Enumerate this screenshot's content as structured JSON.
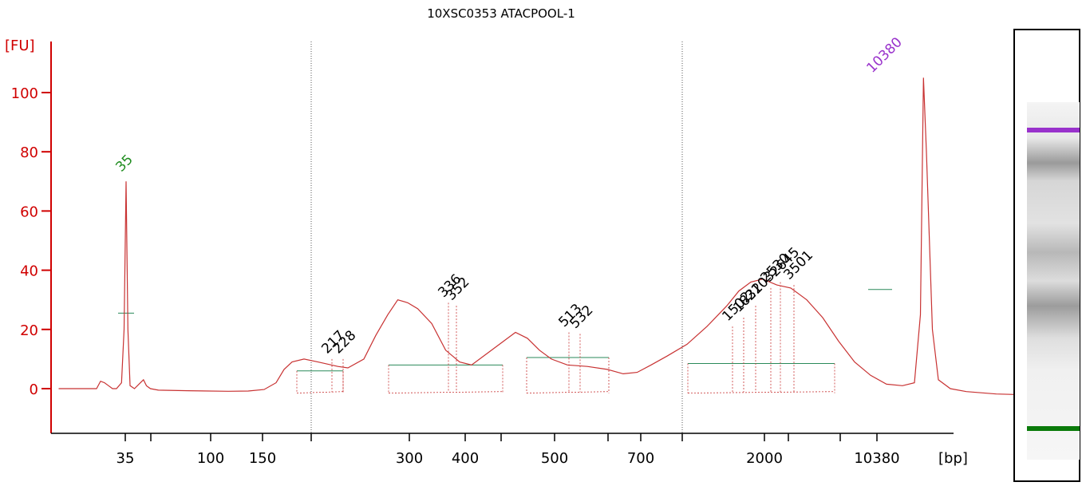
{
  "chart_data": {
    "type": "line",
    "title": "10XSC0353 ATACPOOL-1",
    "y_unit_label": "[FU]",
    "x_unit_label": "[bp]",
    "ylim": [
      -15,
      115
    ],
    "y_ticks": [
      0,
      20,
      40,
      60,
      80,
      100
    ],
    "x_tick_labels": [
      "35",
      "100",
      "150",
      "300",
      "400",
      "500",
      "700",
      "2000",
      "10380"
    ],
    "markers": {
      "lower": {
        "label": "35",
        "color": "#1e8c1e"
      },
      "upper": {
        "label": "10380",
        "color": "#9932cc"
      }
    },
    "peak_labels": [
      "217",
      "228",
      "336",
      "352",
      "513",
      "532",
      "1502",
      "1832",
      "2103",
      "2530",
      "2645",
      "3501"
    ],
    "trace_points": [
      [
        0.5,
        0
      ],
      [
        2.4,
        0
      ],
      [
        2.6,
        2.5
      ],
      [
        2.8,
        2
      ],
      [
        3.0,
        1
      ],
      [
        3.2,
        0
      ],
      [
        3.4,
        0
      ],
      [
        3.65,
        2
      ],
      [
        3.78,
        20
      ],
      [
        3.88,
        70
      ],
      [
        3.97,
        20
      ],
      [
        4.08,
        1
      ],
      [
        4.3,
        0
      ],
      [
        4.6,
        2
      ],
      [
        4.75,
        3
      ],
      [
        4.9,
        1
      ],
      [
        5.1,
        0
      ],
      [
        5.5,
        -0.5
      ],
      [
        7,
        -0.7
      ],
      [
        9,
        -0.9
      ],
      [
        10,
        -0.8
      ],
      [
        10.8,
        -0.3
      ],
      [
        11.4,
        2
      ],
      [
        11.8,
        6.5
      ],
      [
        12.2,
        9
      ],
      [
        12.8,
        10
      ],
      [
        13.5,
        9
      ],
      [
        14.5,
        7.5
      ],
      [
        15.0,
        7
      ],
      [
        15.8,
        10
      ],
      [
        16.4,
        18
      ],
      [
        17.0,
        25
      ],
      [
        17.5,
        30
      ],
      [
        18.0,
        29
      ],
      [
        18.5,
        27
      ],
      [
        19.2,
        22
      ],
      [
        19.9,
        13
      ],
      [
        20.6,
        9
      ],
      [
        21.2,
        8
      ],
      [
        22.0,
        12
      ],
      [
        22.8,
        16
      ],
      [
        23.4,
        19
      ],
      [
        24.0,
        17
      ],
      [
        24.6,
        13
      ],
      [
        25.2,
        10
      ],
      [
        26.0,
        8
      ],
      [
        27.0,
        7.5
      ],
      [
        28.0,
        6.5
      ],
      [
        28.8,
        5
      ],
      [
        29.5,
        5.5
      ],
      [
        30.2,
        8
      ],
      [
        31.0,
        11
      ],
      [
        32.0,
        15
      ],
      [
        33.0,
        21
      ],
      [
        34.0,
        28
      ],
      [
        34.6,
        33
      ],
      [
        35.2,
        36
      ],
      [
        35.8,
        37
      ],
      [
        36.5,
        35
      ],
      [
        37.2,
        34
      ],
      [
        38.0,
        30
      ],
      [
        38.8,
        24
      ],
      [
        39.6,
        16
      ],
      [
        40.4,
        9
      ],
      [
        41.2,
        4.5
      ],
      [
        42.0,
        1.5
      ],
      [
        42.8,
        1
      ],
      [
        43.4,
        2
      ],
      [
        43.7,
        25
      ],
      [
        43.85,
        105
      ],
      [
        44.0,
        80
      ],
      [
        44.3,
        20
      ],
      [
        44.6,
        3
      ],
      [
        45.2,
        0
      ],
      [
        46.0,
        -1
      ],
      [
        47.5,
        -1.8
      ],
      [
        48.5,
        -2
      ]
    ]
  }
}
